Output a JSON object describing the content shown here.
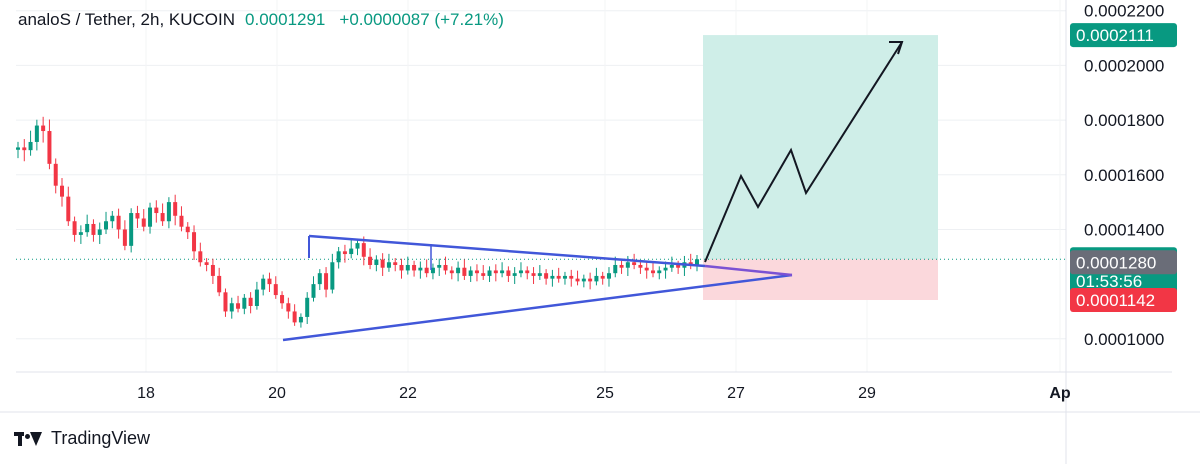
{
  "header": {
    "symbol": "analoS / Tether, 2h, KUCOIN",
    "price": "0.0001291",
    "change": "+0.0000087 (+7.21%)"
  },
  "brand": {
    "name": "TradingView"
  },
  "colors": {
    "up": "#089981",
    "down": "#f23645",
    "pattern": "#4157d9",
    "target_zone": "#cfeee8",
    "stop_zone": "#fbd8dc",
    "tag_green": "#089981",
    "tag_grey": "#6a6d78",
    "tag_red": "#f23645"
  },
  "chart_data": {
    "type": "candlestick",
    "title": "analoS / Tether, 2h, KUCOIN",
    "x_ticks": [
      "18",
      "20",
      "22",
      "25",
      "27",
      "29",
      "Ap"
    ],
    "y_ticks": [
      "0.0002200",
      "0.0002000",
      "0.0001800",
      "0.0001600",
      "0.0001400",
      "0.0001000"
    ],
    "ylim": [
      9.7e-05,
      0.000221
    ],
    "price_tags": [
      {
        "label": "0.0002111",
        "value": 0.0002111,
        "color": "green"
      },
      {
        "label": "0.0001291",
        "value": 0.0001291,
        "color": "green",
        "sublabel": "01:53:56"
      },
      {
        "label": "0.0001280",
        "value": 0.000128,
        "color": "grey"
      },
      {
        "label": "0.0001142",
        "value": 0.0001142,
        "color": "red"
      }
    ],
    "last_price": 0.0001291,
    "candle_close_series": [
      0.00017,
      0.000169,
      0.000172,
      0.000178,
      0.000176,
      0.000164,
      0.000156,
      0.000152,
      0.000143,
      0.000138,
      0.000139,
      0.000142,
      0.000138,
      0.00014,
      0.000143,
      0.000145,
      0.00014,
      0.000134,
      0.000146,
      0.000144,
      0.000141,
      0.000148,
      0.000146,
      0.000143,
      0.00015,
      0.000145,
      0.000141,
      0.000139,
      0.000132,
      0.000128,
      0.000127,
      0.000123,
      0.000117,
      0.00011,
      0.000113,
      0.000111,
      0.000115,
      0.000112,
      0.000118,
      0.000122,
      0.00012,
      0.000116,
      0.000113,
      0.00011,
      0.000106,
      0.000108,
      0.000115,
      0.00012,
      0.000124,
      0.000118,
      0.000128,
      0.000132,
      0.000131,
      0.000133,
      0.000135,
      0.00013,
      0.000127,
      0.000129,
      0.000126,
      0.000128,
      0.000127,
      0.000125,
      0.000127,
      0.000125,
      0.000126,
      0.000124,
      0.000126,
      0.000127,
      0.000125,
      0.000124,
      0.000126,
      0.000123,
      0.000125,
      0.000124,
      0.000123,
      0.000125,
      0.000124,
      0.000125,
      0.000123,
      0.000124,
      0.000125,
      0.000124,
      0.000123,
      0.000124,
      0.000122,
      0.000123,
      0.000122,
      0.000123,
      0.000122,
      0.000121,
      0.000122,
      0.000121,
      0.000123,
      0.000122,
      0.000124,
      0.000127,
      0.000126,
      0.000128,
      0.000127,
      0.000126,
      0.000125,
      0.000124,
      0.000125,
      0.000126,
      0.000127,
      0.000126,
      0.000128,
      0.000127,
      0.0001291
    ]
  }
}
